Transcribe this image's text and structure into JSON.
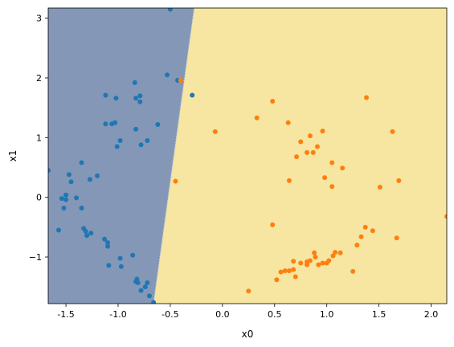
{
  "chart_data": {
    "type": "scatter",
    "title": "",
    "xlabel": "x0",
    "ylabel": "x1",
    "xlim": [
      -1.67,
      2.15
    ],
    "ylim": [
      -1.78,
      3.17
    ],
    "xticks": [
      "-1.5",
      "-1.0",
      "-0.5",
      "0.0",
      "0.5",
      "1.0",
      "1.5",
      "2.0"
    ],
    "xtick_values": [
      -1.5,
      -1.0,
      -0.5,
      0.0,
      0.5,
      1.0,
      1.5,
      2.0
    ],
    "yticks": [
      "−1",
      "0",
      "1",
      "2",
      "3"
    ],
    "ytick_values": [
      -1,
      0,
      1,
      2,
      3
    ],
    "grid": false,
    "legend": "none",
    "decision_boundary": {
      "points": [
        [
          -0.27,
          3.17
        ],
        [
          -0.66,
          -1.78
        ]
      ],
      "left_region_color": "#8497b6",
      "right_region_color": "#f6e6a2"
    },
    "series": [
      {
        "color": "#1f77b4",
        "x": [
          -0.5,
          -0.29,
          -0.53,
          -0.43,
          -0.84,
          -1.12,
          -1.02,
          -1.06,
          -0.83,
          -0.79,
          -0.79,
          -0.62,
          -1.12,
          -1.03,
          -0.72,
          -0.78,
          -0.83,
          -0.98,
          -1.01,
          -1.35,
          -1.27,
          -1.47,
          -1.67,
          -1.45,
          -1.54,
          -1.5,
          -1.52,
          -1.2,
          -1.35,
          -1.5,
          -1.4,
          -1.33,
          -1.57,
          -1.31,
          -1.3,
          -1.26,
          -1.13,
          -1.1,
          -1.09,
          -0.86,
          -0.98,
          -0.97,
          -1.1,
          -0.82,
          -0.83,
          -0.81,
          -0.74,
          -0.72,
          -0.78,
          -0.7,
          -0.66
        ],
        "y": [
          3.15,
          1.71,
          2.05,
          1.96,
          1.92,
          1.71,
          1.66,
          1.23,
          1.66,
          1.7,
          1.6,
          1.22,
          1.23,
          1.25,
          0.95,
          0.88,
          1.14,
          0.95,
          0.85,
          0.58,
          0.3,
          0.38,
          0.45,
          0.26,
          -0.02,
          -0.04,
          -0.18,
          0.36,
          -0.18,
          0.04,
          -0.01,
          -0.52,
          -0.55,
          -0.57,
          -0.64,
          -0.6,
          -0.7,
          -0.76,
          -1.14,
          -0.97,
          -1.02,
          -1.16,
          -0.82,
          -1.37,
          -1.41,
          -1.43,
          -1.5,
          -1.43,
          -1.56,
          -1.65,
          -1.76
        ]
      },
      {
        "color": "#ff7f0e",
        "x": [
          -0.4,
          -0.45,
          -0.07,
          0.33,
          0.48,
          0.63,
          0.84,
          0.91,
          0.96,
          0.75,
          0.81,
          0.87,
          0.71,
          1.05,
          1.15,
          0.98,
          0.64,
          1.05,
          1.38,
          1.63,
          1.51,
          1.69,
          1.37,
          1.33,
          1.44,
          0.48,
          2.15,
          1.67,
          1.29,
          1.25,
          1.08,
          1.06,
          1.13,
          1.0,
          0.89,
          0.92,
          0.96,
          0.84,
          0.81,
          0.81,
          0.75,
          0.68,
          0.64,
          0.6,
          0.56,
          0.7,
          0.52,
          0.68,
          0.88,
          1.02,
          0.25
        ],
        "y": [
          1.96,
          0.27,
          1.1,
          1.33,
          1.61,
          1.25,
          1.03,
          0.85,
          1.11,
          0.93,
          0.75,
          0.75,
          0.68,
          0.58,
          0.49,
          0.33,
          0.28,
          0.18,
          1.67,
          1.1,
          0.17,
          0.28,
          -0.5,
          -0.66,
          -0.56,
          -0.46,
          -0.32,
          -0.68,
          -0.8,
          -1.24,
          -0.92,
          -0.98,
          -0.93,
          -1.1,
          -1.0,
          -1.13,
          -1.1,
          -1.06,
          -1.13,
          -1.08,
          -1.1,
          -1.07,
          -1.23,
          -1.23,
          -1.25,
          -1.33,
          -1.38,
          -1.21,
          -0.93,
          -1.06,
          -1.57
        ]
      }
    ]
  }
}
